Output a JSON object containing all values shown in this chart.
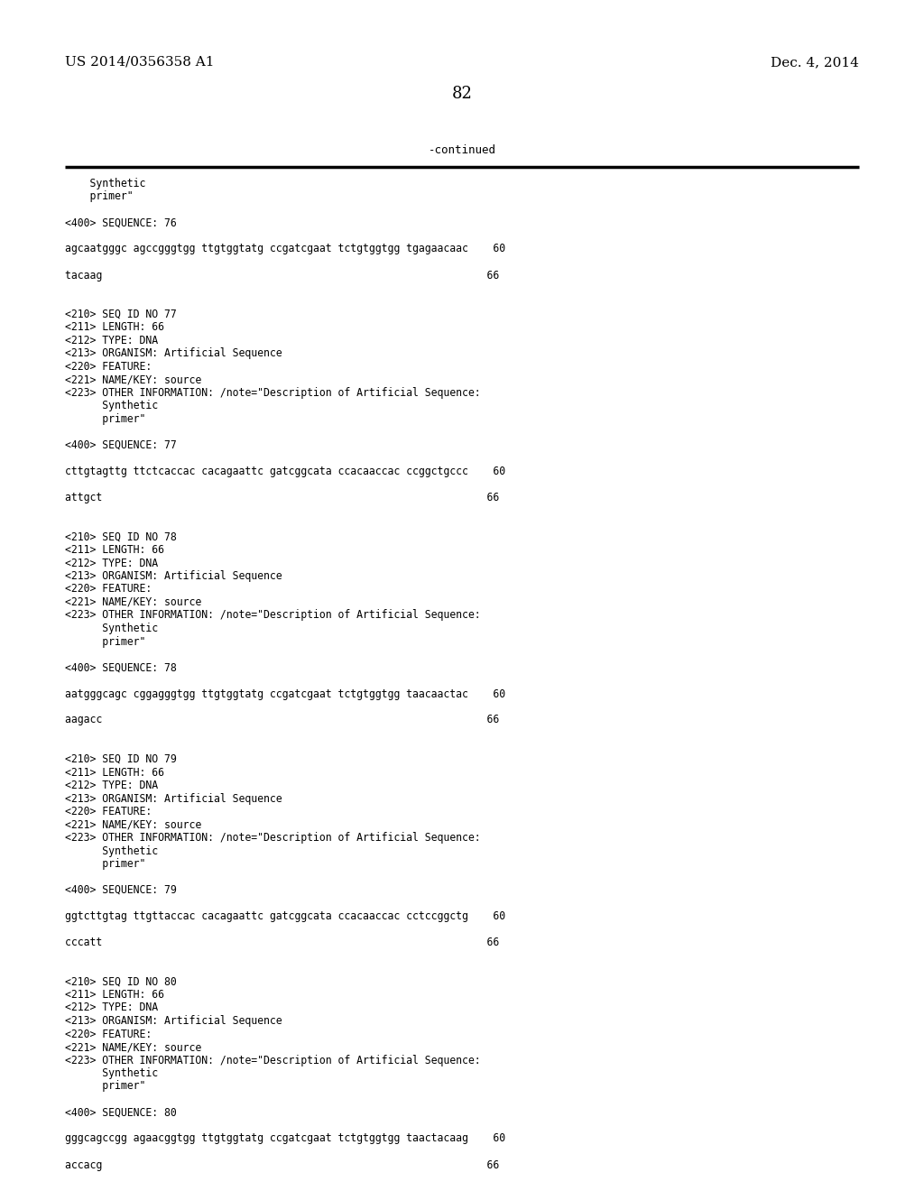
{
  "header_left": "US 2014/0356358 A1",
  "header_right": "Dec. 4, 2014",
  "page_number": "82",
  "continued_text": "-continued",
  "background_color": "#ffffff",
  "text_color": "#000000",
  "lines": [
    "    Synthetic",
    "    primer\"",
    "",
    "<400> SEQUENCE: 76",
    "",
    "agcaatgggc agccgggtgg ttgtggtatg ccgatcgaat tctgtggtgg tgagaacaac    60",
    "",
    "tacaag                                                              66",
    "",
    "",
    "<210> SEQ ID NO 77",
    "<211> LENGTH: 66",
    "<212> TYPE: DNA",
    "<213> ORGANISM: Artificial Sequence",
    "<220> FEATURE:",
    "<221> NAME/KEY: source",
    "<223> OTHER INFORMATION: /note=\"Description of Artificial Sequence:",
    "      Synthetic",
    "      primer\"",
    "",
    "<400> SEQUENCE: 77",
    "",
    "cttgtagttg ttctcaccac cacagaattc gatcggcata ccacaaccac ccggctgccc    60",
    "",
    "attgct                                                              66",
    "",
    "",
    "<210> SEQ ID NO 78",
    "<211> LENGTH: 66",
    "<212> TYPE: DNA",
    "<213> ORGANISM: Artificial Sequence",
    "<220> FEATURE:",
    "<221> NAME/KEY: source",
    "<223> OTHER INFORMATION: /note=\"Description of Artificial Sequence:",
    "      Synthetic",
    "      primer\"",
    "",
    "<400> SEQUENCE: 78",
    "",
    "aatgggcagc cggagggtgg ttgtggtatg ccgatcgaat tctgtggtgg taacaactac    60",
    "",
    "aagacc                                                              66",
    "",
    "",
    "<210> SEQ ID NO 79",
    "<211> LENGTH: 66",
    "<212> TYPE: DNA",
    "<213> ORGANISM: Artificial Sequence",
    "<220> FEATURE:",
    "<221> NAME/KEY: source",
    "<223> OTHER INFORMATION: /note=\"Description of Artificial Sequence:",
    "      Synthetic",
    "      primer\"",
    "",
    "<400> SEQUENCE: 79",
    "",
    "ggtcttgtag ttgttaccac cacagaattc gatcggcata ccacaaccac cctccggctg    60",
    "",
    "cccatt                                                              66",
    "",
    "",
    "<210> SEQ ID NO 80",
    "<211> LENGTH: 66",
    "<212> TYPE: DNA",
    "<213> ORGANISM: Artificial Sequence",
    "<220> FEATURE:",
    "<221> NAME/KEY: source",
    "<223> OTHER INFORMATION: /note=\"Description of Artificial Sequence:",
    "      Synthetic",
    "      primer\"",
    "",
    "<400> SEQUENCE: 80",
    "",
    "gggcagccgg agaacggtgg ttgtggtatg ccgatcgaat tctgtggtgg taactacaag    60",
    "",
    "accacg                                                              66"
  ],
  "figwidth": 10.24,
  "figheight": 13.2,
  "dpi": 100
}
